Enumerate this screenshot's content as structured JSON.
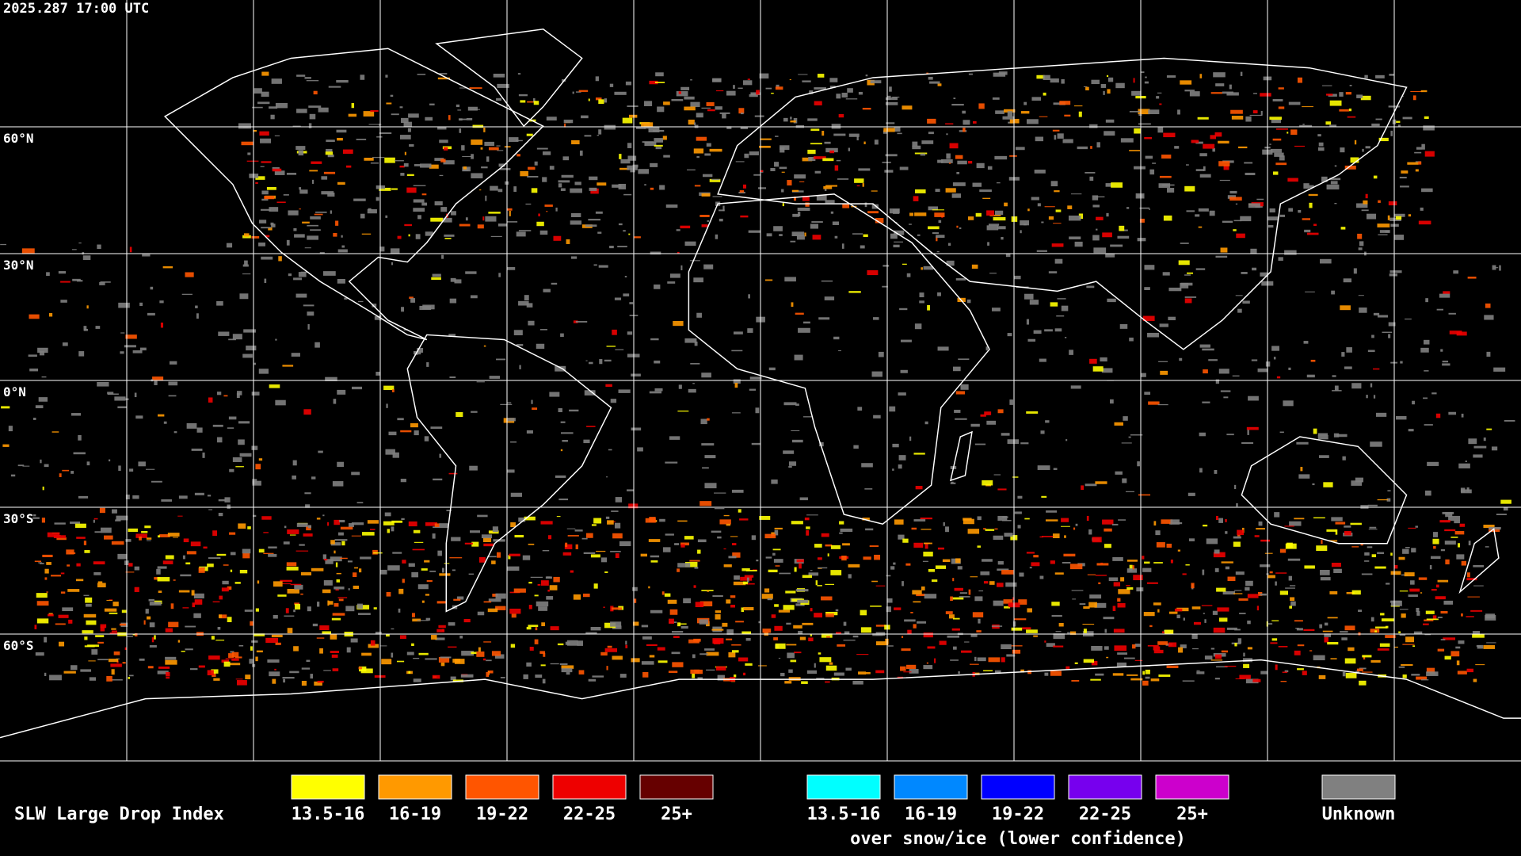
{
  "timestamp": "2025.287 17:00 UTC",
  "lat_labels": [
    "60°N",
    "30°N",
    "0°N",
    "30°S",
    "60°S"
  ],
  "legend": {
    "title": "SLW Large Drop Index",
    "groups": [
      {
        "items": [
          {
            "label": "13.5-16",
            "color": "#ffff00"
          },
          {
            "label": "16-19",
            "color": "#ff9900"
          },
          {
            "label": "19-22",
            "color": "#ff5500"
          },
          {
            "label": "22-25",
            "color": "#ee0000"
          },
          {
            "label": "25+",
            "color": "#660000"
          }
        ]
      },
      {
        "items": [
          {
            "label": "13.5-16",
            "color": "#00ffff"
          },
          {
            "label": "16-19",
            "color": "#0088ff"
          },
          {
            "label": "19-22",
            "color": "#0000ff"
          },
          {
            "label": "22-25",
            "color": "#7700ee"
          },
          {
            "label": "25+",
            "color": "#cc00cc"
          }
        ],
        "caption": "over snow/ice (lower confidence)"
      },
      {
        "items": [
          {
            "label": "Unknown",
            "color": "#808080"
          }
        ]
      }
    ]
  }
}
